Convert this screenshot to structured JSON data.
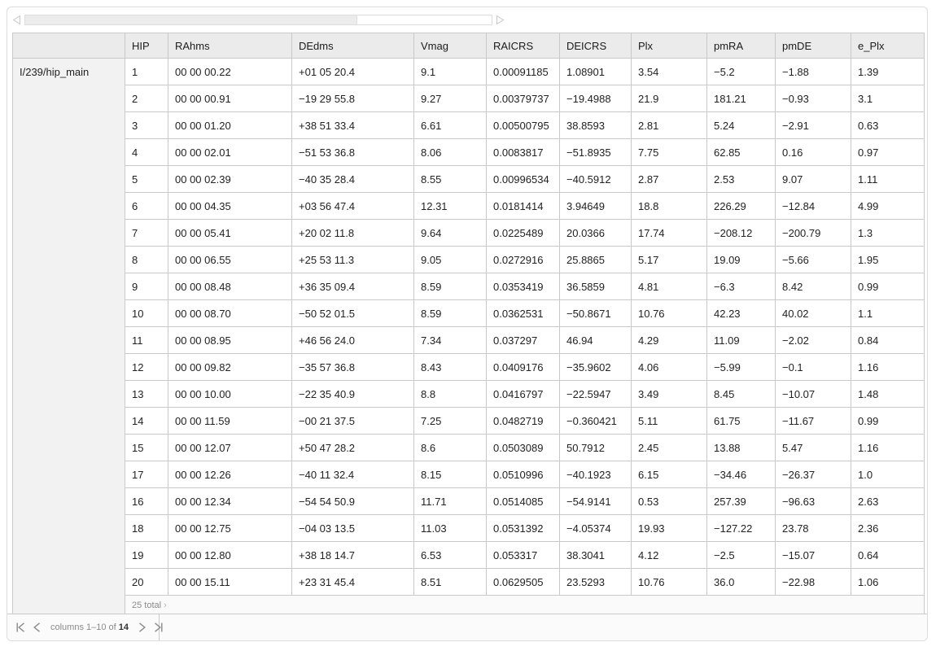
{
  "scrollbar": {
    "thumb_percent": 71,
    "left_arrow_icon": "triangle-left",
    "right_arrow_icon": "triangle-right"
  },
  "table": {
    "source_label": "I/239/hip_main",
    "columns": [
      "HIP",
      "RAhms",
      "DEdms",
      "Vmag",
      "RAICRS",
      "DEICRS",
      "Plx",
      "pmRA",
      "pmDE",
      "e_Plx"
    ],
    "rows": [
      [
        "1",
        "00 00 00.22",
        "+01 05 20.4",
        "9.1",
        "0.00091185",
        "1.08901",
        "3.54",
        "−5.2",
        "−1.88",
        "1.39"
      ],
      [
        "2",
        "00 00 00.91",
        "−19 29 55.8",
        "9.27",
        "0.00379737",
        "−19.4988",
        "21.9",
        "181.21",
        "−0.93",
        "3.1"
      ],
      [
        "3",
        "00 00 01.20",
        "+38 51 33.4",
        "6.61",
        "0.00500795",
        "38.8593",
        "2.81",
        "5.24",
        "−2.91",
        "0.63"
      ],
      [
        "4",
        "00 00 02.01",
        "−51 53 36.8",
        "8.06",
        "0.0083817",
        "−51.8935",
        "7.75",
        "62.85",
        "0.16",
        "0.97"
      ],
      [
        "5",
        "00 00 02.39",
        "−40 35 28.4",
        "8.55",
        "0.00996534",
        "−40.5912",
        "2.87",
        "2.53",
        "9.07",
        "1.11"
      ],
      [
        "6",
        "00 00 04.35",
        "+03 56 47.4",
        "12.31",
        "0.0181414",
        "3.94649",
        "18.8",
        "226.29",
        "−12.84",
        "4.99"
      ],
      [
        "7",
        "00 00 05.41",
        "+20 02 11.8",
        "9.64",
        "0.0225489",
        "20.0366",
        "17.74",
        "−208.12",
        "−200.79",
        "1.3"
      ],
      [
        "8",
        "00 00 06.55",
        "+25 53 11.3",
        "9.05",
        "0.0272916",
        "25.8865",
        "5.17",
        "19.09",
        "−5.66",
        "1.95"
      ],
      [
        "9",
        "00 00 08.48",
        "+36 35 09.4",
        "8.59",
        "0.0353419",
        "36.5859",
        "4.81",
        "−6.3",
        "8.42",
        "0.99"
      ],
      [
        "10",
        "00 00 08.70",
        "−50 52 01.5",
        "8.59",
        "0.0362531",
        "−50.8671",
        "10.76",
        "42.23",
        "40.02",
        "1.1"
      ],
      [
        "11",
        "00 00 08.95",
        "+46 56 24.0",
        "7.34",
        "0.037297",
        "46.94",
        "4.29",
        "11.09",
        "−2.02",
        "0.84"
      ],
      [
        "12",
        "00 00 09.82",
        "−35 57 36.8",
        "8.43",
        "0.0409176",
        "−35.9602",
        "4.06",
        "−5.99",
        "−0.1",
        "1.16"
      ],
      [
        "13",
        "00 00 10.00",
        "−22 35 40.9",
        "8.8",
        "0.0416797",
        "−22.5947",
        "3.49",
        "8.45",
        "−10.07",
        "1.48"
      ],
      [
        "14",
        "00 00 11.59",
        "−00 21 37.5",
        "7.25",
        "0.0482719",
        "−0.360421",
        "5.11",
        "61.75",
        "−11.67",
        "0.99"
      ],
      [
        "15",
        "00 00 12.07",
        "+50 47 28.2",
        "8.6",
        "0.0503089",
        "50.7912",
        "2.45",
        "13.88",
        "5.47",
        "1.16"
      ],
      [
        "17",
        "00 00 12.26",
        "−40 11 32.4",
        "8.15",
        "0.0510996",
        "−40.1923",
        "6.15",
        "−34.46",
        "−26.37",
        "1.0"
      ],
      [
        "16",
        "00 00 12.34",
        "−54 54 50.9",
        "11.71",
        "0.0514085",
        "−54.9141",
        "0.53",
        "257.39",
        "−96.63",
        "2.63"
      ],
      [
        "18",
        "00 00 12.75",
        "−04 03 13.5",
        "11.03",
        "0.0531392",
        "−4.05374",
        "19.93",
        "−127.22",
        "23.78",
        "2.36"
      ],
      [
        "19",
        "00 00 12.80",
        "+38 18 14.7",
        "6.53",
        "0.053317",
        "38.3041",
        "4.12",
        "−2.5",
        "−15.07",
        "0.64"
      ],
      [
        "20",
        "00 00 15.11",
        "+23 31 45.4",
        "8.51",
        "0.0629505",
        "23.5293",
        "10.76",
        "36.0",
        "−22.98",
        "1.06"
      ]
    ],
    "footer_row": {
      "total_text": "25 total",
      "expander_glyph": "›"
    }
  },
  "pager": {
    "first_icon": "skip-to-first",
    "prev_icon": "chevron-left",
    "next_icon": "chevron-right",
    "last_icon": "skip-to-last",
    "text_prefix": "columns 1–10 of",
    "total_columns": "14"
  },
  "colors": {
    "header_bg": "#ebebeb",
    "label_cell_bg": "#f2f2f2",
    "total_row_bg": "#fafafa",
    "cell_border": "#c9c9c9",
    "widget_border": "#dcdcdc",
    "muted_text": "#8a8a8a",
    "cell_text": "#222222"
  }
}
